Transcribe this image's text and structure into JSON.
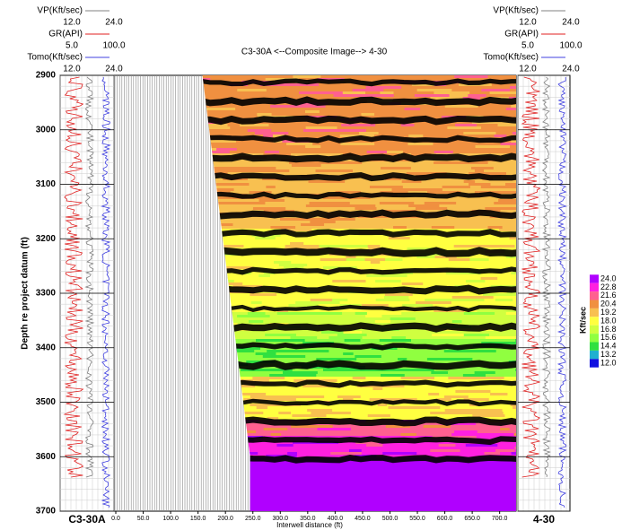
{
  "chart_data": {
    "type": "seismic_composite",
    "title": "C3-30A  <--Composite Image-->  4-30",
    "y_label": "Depth re project datum (ft)",
    "x_label": "Interwell distance (ft)",
    "ylim": [
      2900,
      3700
    ],
    "yticks": [
      2900,
      3000,
      3100,
      3200,
      3300,
      3400,
      3500,
      3600,
      3700
    ],
    "xlim": [
      0,
      730
    ],
    "xticks": [
      {
        "value": 0,
        "label": "0.0"
      },
      {
        "value": 50,
        "label": "50.0"
      },
      {
        "value": 100,
        "label": "100.0"
      },
      {
        "value": 150,
        "label": "150.0"
      },
      {
        "value": 200,
        "label": "200.0"
      },
      {
        "value": 250,
        "label": "250.0"
      },
      {
        "value": 300,
        "label": "300.0"
      },
      {
        "value": 350,
        "label": "350.0"
      },
      {
        "value": 400,
        "label": "400.0"
      },
      {
        "value": 450,
        "label": "450.0"
      },
      {
        "value": 500,
        "label": "500.0"
      },
      {
        "value": 550,
        "label": "550.0"
      },
      {
        "value": 600,
        "label": "600.0"
      },
      {
        "value": 650,
        "label": "650.0"
      },
      {
        "value": 700,
        "label": "700.0"
      }
    ],
    "wells": [
      {
        "name": "C3-30A",
        "curves": [
          {
            "name": "VP(Kft/sec)",
            "color": "#808080",
            "min": {
              "value": 12,
              "label": "12.0"
            },
            "max": {
              "value": 24,
              "label": "24.0"
            }
          },
          {
            "name": "GR(API)",
            "color": "#e02020",
            "min": {
              "value": 5,
              "label": "5.0"
            },
            "max": {
              "value": 100,
              "label": "100.0"
            }
          },
          {
            "name": "Tomo(Kft/sec)",
            "color": "#4040e0",
            "min": {
              "value": 12,
              "label": "12.0"
            },
            "max": {
              "value": 24,
              "label": "24.0"
            }
          }
        ]
      },
      {
        "name": "4-30",
        "curves": [
          {
            "name": "VP(Kft/sec)",
            "color": "#808080",
            "min": {
              "value": 12,
              "label": "12.0"
            },
            "max": {
              "value": 24,
              "label": "24.0"
            }
          },
          {
            "name": "GR(API)",
            "color": "#e02020",
            "min": {
              "value": 5,
              "label": "5.0"
            },
            "max": {
              "value": 100,
              "label": "100.0"
            }
          },
          {
            "name": "Tomo(Kft/sec)",
            "color": "#4040e0",
            "min": {
              "value": 12,
              "label": "12.0"
            },
            "max": {
              "value": 24,
              "label": "24.0"
            }
          }
        ]
      }
    ],
    "colorbar": {
      "label": "Kft/sec",
      "ticks": [
        {
          "value": 24,
          "label": "24.0"
        },
        {
          "value": 22.8,
          "label": "22.8"
        },
        {
          "value": 21.6,
          "label": "21.6"
        },
        {
          "value": 20.4,
          "label": "20.4"
        },
        {
          "value": 19.2,
          "label": "19.2"
        },
        {
          "value": 18,
          "label": "18.0"
        },
        {
          "value": 16.8,
          "label": "16.8"
        },
        {
          "value": 15.6,
          "label": "15.6"
        },
        {
          "value": 14.4,
          "label": "14.4"
        },
        {
          "value": 13.2,
          "label": "13.2"
        },
        {
          "value": 12,
          "label": "12.0"
        }
      ],
      "colors": [
        "#b000ff",
        "#ff20e0",
        "#ff6090",
        "#f09040",
        "#f8c050",
        "#ffff40",
        "#d0ff40",
        "#90ff40",
        "#30e040",
        "#20b0d0",
        "#1010e0"
      ]
    }
  }
}
